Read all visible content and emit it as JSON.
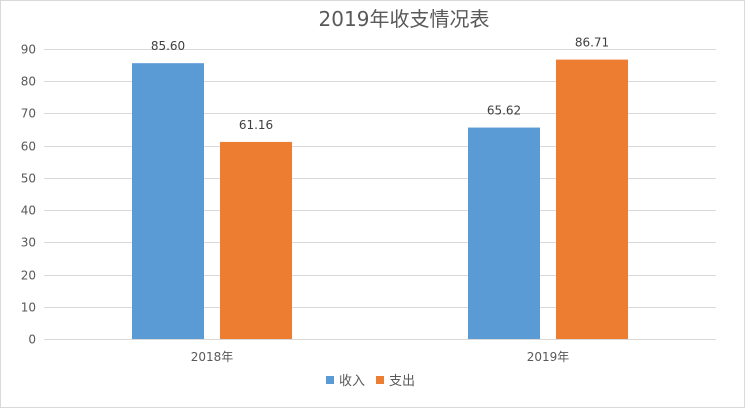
{
  "chart_data": {
    "type": "bar",
    "title": "2019年收支情况表",
    "categories": [
      "2018年",
      "2019年"
    ],
    "series": [
      {
        "name": "收入",
        "values": [
          85.6,
          65.62
        ],
        "labels": [
          "85.60",
          "65.62"
        ],
        "color": "#5B9BD5"
      },
      {
        "name": "支出",
        "values": [
          61.16,
          86.71
        ],
        "labels": [
          "61.16",
          "86.71"
        ],
        "color": "#ED7D31"
      }
    ],
    "ylim": [
      0,
      90
    ],
    "yticks": [
      0,
      10,
      20,
      30,
      40,
      50,
      60,
      70,
      80,
      90
    ],
    "grid": true,
    "legend": "bottom",
    "xlabel": "",
    "ylabel": ""
  }
}
